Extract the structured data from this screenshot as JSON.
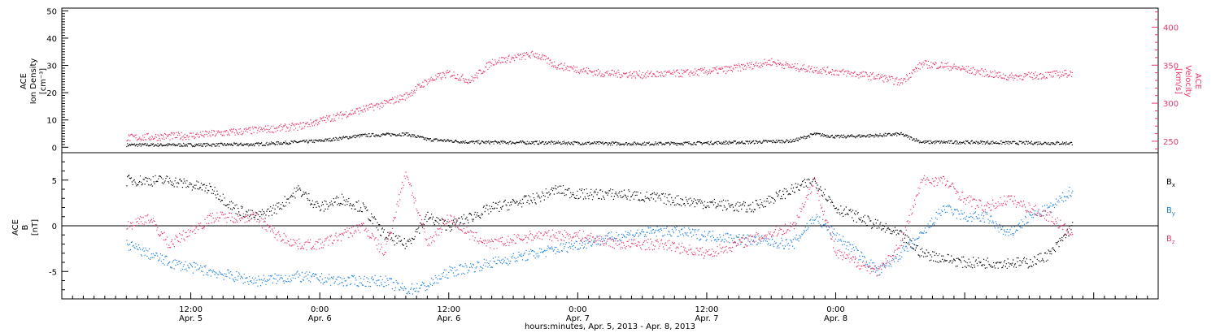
{
  "chart_data": [
    {
      "type": "scatter",
      "panel": "plasma",
      "ylabel_left": [
        "ACE",
        "Ion Density",
        "[cm⁻³]"
      ],
      "ylabel_right": [
        "ACE",
        "Velocity",
        "[km/s]"
      ],
      "ylim_left": [
        -2,
        51
      ],
      "ylim_right": [
        235,
        425
      ],
      "yticks_left": [
        0,
        10,
        20,
        30,
        40,
        50
      ],
      "yticks_right": [
        250,
        300,
        350,
        400
      ],
      "series": [
        {
          "name": "Ion Density",
          "axis": "left",
          "color": "#000000",
          "x_hours": [
            0,
            6,
            12,
            18,
            22,
            26,
            28,
            32,
            40,
            46,
            50,
            58,
            62,
            64,
            66,
            70,
            72,
            74,
            78,
            82,
            86,
            88
          ],
          "values": [
            1,
            1,
            1.2,
            2.5,
            4.5,
            5,
            3,
            2,
            1.8,
            1.5,
            1.5,
            2,
            2.5,
            5,
            4,
            4.5,
            5,
            2,
            2,
            1.8,
            1.7,
            1.6
          ]
        },
        {
          "name": "Velocity",
          "axis": "right",
          "color": "#e8386a",
          "x_hours": [
            0,
            6,
            12,
            16,
            20,
            24,
            26,
            28,
            30,
            32,
            34,
            38,
            40,
            42,
            44,
            48,
            52,
            56,
            60,
            62,
            64,
            66,
            70,
            72,
            74,
            76,
            78,
            82,
            86,
            88
          ],
          "values": [
            255,
            258,
            265,
            270,
            285,
            300,
            310,
            330,
            340,
            330,
            355,
            365,
            350,
            345,
            340,
            338,
            340,
            345,
            355,
            348,
            345,
            342,
            335,
            328,
            352,
            350,
            345,
            335,
            338,
            340
          ]
        }
      ]
    },
    {
      "type": "scatter",
      "panel": "magnetic-field",
      "ylabel_left": [
        "ACE",
        "B",
        "[nT]"
      ],
      "ylim": [
        -8,
        8
      ],
      "yticks": [
        -5,
        0,
        5
      ],
      "zero_line": true,
      "series": [
        {
          "name": "B",
          "subscript": "x",
          "color": "#000000",
          "x_hours": [
            0,
            4,
            8,
            10,
            12,
            14,
            16,
            18,
            20,
            22,
            24,
            26,
            28,
            30,
            32,
            34,
            38,
            40,
            42,
            46,
            50,
            54,
            58,
            62,
            64,
            66,
            68,
            70,
            72,
            74,
            76,
            78,
            82,
            84,
            86,
            88
          ],
          "values": [
            5,
            5,
            4,
            2,
            1,
            2,
            4,
            2,
            3,
            2,
            -1,
            -2,
            1,
            0,
            1,
            2,
            3,
            4,
            3.5,
            3.5,
            3,
            2.5,
            2,
            4,
            5,
            2,
            1,
            0,
            -1,
            -3,
            -3.5,
            -4,
            -4,
            -4,
            -3,
            0
          ]
        },
        {
          "name": "B",
          "subscript": "y",
          "color": "#1a7fe0",
          "x_hours": [
            0,
            4,
            8,
            12,
            16,
            20,
            24,
            26,
            28,
            30,
            34,
            38,
            42,
            46,
            50,
            54,
            58,
            62,
            64,
            66,
            68,
            70,
            72,
            74,
            76,
            78,
            80,
            82,
            84,
            86,
            88
          ],
          "values": [
            -2,
            -4,
            -5,
            -6,
            -5.5,
            -6,
            -6,
            -7,
            -6.5,
            -5,
            -4,
            -3,
            -2,
            -1,
            -0.5,
            -1,
            -1.5,
            -2,
            1,
            -1,
            -3,
            -5,
            -3,
            -1,
            2,
            1,
            1,
            -1,
            1,
            2,
            4
          ]
        },
        {
          "name": "B",
          "subscript": "z",
          "color": "#e8386a",
          "x_hours": [
            0,
            2,
            4,
            8,
            12,
            14,
            16,
            18,
            20,
            22,
            24,
            26,
            28,
            30,
            32,
            34,
            38,
            42,
            46,
            50,
            54,
            58,
            62,
            64,
            66,
            68,
            70,
            72,
            74,
            76,
            78,
            80,
            82,
            84,
            86,
            88
          ],
          "values": [
            0,
            1,
            -2,
            1,
            1,
            -1,
            -2,
            -2,
            -1,
            0,
            -3,
            6,
            -2,
            1,
            -1,
            -2,
            -1,
            -1,
            -2,
            -2,
            -3,
            -1.5,
            0,
            5,
            -3,
            -4,
            -5,
            -2,
            5,
            5,
            3,
            2,
            3,
            2,
            1,
            -1
          ]
        }
      ]
    }
  ],
  "xaxis": {
    "range_hours": [
      -6,
      96
    ],
    "ticks": [
      {
        "h": 6,
        "time": "12:00",
        "date": "Apr. 5"
      },
      {
        "h": 18,
        "time": "0:00",
        "date": "Apr. 6"
      },
      {
        "h": 30,
        "time": "12:00",
        "date": "Apr. 6"
      },
      {
        "h": 42,
        "time": "0:00",
        "date": "Apr. 7"
      },
      {
        "h": 54,
        "time": "12:00",
        "date": "Apr. 7"
      },
      {
        "h": 66,
        "time": "0:00",
        "date": "Apr. 8"
      }
    ],
    "label": "hours:minutes, Apr.  5, 2013 - Apr.  8, 2013"
  },
  "legend_right": [
    {
      "name": "B",
      "sub": "x",
      "color": "#000000"
    },
    {
      "name": "B",
      "sub": "y",
      "color": "#1a7fe0"
    },
    {
      "name": "B",
      "sub": "z",
      "color": "#e8386a"
    }
  ]
}
